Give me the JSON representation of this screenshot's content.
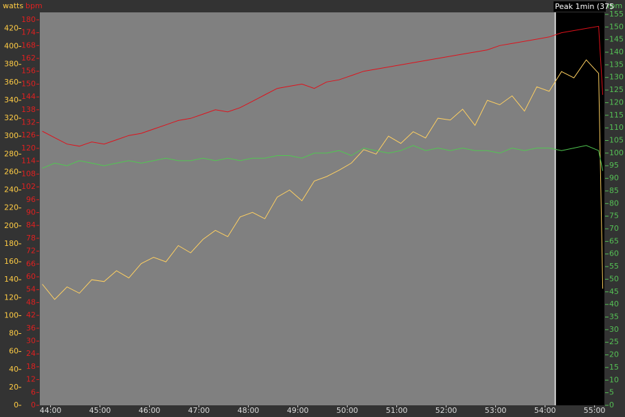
{
  "chart_data": {
    "type": "line",
    "ylabel": "watts",
    "y2label": "bpm",
    "y3label": "rpm",
    "xlim": [
      2627,
      3312
    ],
    "xticks": [
      {
        "value": 2640,
        "label": "44:00"
      },
      {
        "value": 2700,
        "label": "45:00"
      },
      {
        "value": 2760,
        "label": "46:00"
      },
      {
        "value": 2820,
        "label": "47:00"
      },
      {
        "value": 2880,
        "label": "48:00"
      },
      {
        "value": 2940,
        "label": "49:00"
      },
      {
        "value": 3000,
        "label": "50:00"
      },
      {
        "value": 3060,
        "label": "51:00"
      },
      {
        "value": 3120,
        "label": "52:00"
      },
      {
        "value": 3180,
        "label": "53:00"
      },
      {
        "value": 3240,
        "label": "54:00"
      },
      {
        "value": 3300,
        "label": "55:00"
      }
    ],
    "ylim": [
      0,
      438
    ],
    "yticks": [
      0,
      20,
      40,
      60,
      80,
      100,
      120,
      140,
      160,
      180,
      200,
      220,
      240,
      260,
      280,
      300,
      320,
      340,
      360,
      380,
      400,
      420
    ],
    "y2lim": [
      0,
      183.5
    ],
    "y2ticks": [
      0,
      6,
      12,
      18,
      24,
      30,
      36,
      42,
      48,
      54,
      60,
      66,
      72,
      78,
      84,
      90,
      96,
      102,
      108,
      114,
      120,
      126,
      132,
      138,
      144,
      150,
      156,
      162,
      168,
      174,
      180
    ],
    "y3lim": [
      0,
      155.8
    ],
    "y3ticks": [
      0,
      5,
      10,
      15,
      20,
      25,
      30,
      35,
      40,
      45,
      50,
      55,
      60,
      65,
      70,
      75,
      80,
      85,
      90,
      95,
      100,
      105,
      110,
      115,
      120,
      125,
      130,
      135,
      140,
      145,
      150,
      155
    ],
    "highlight": {
      "label": "Peak 1min (375",
      "x": [
        3252,
        3312
      ],
      "color": "#000000"
    },
    "x": [
      2630,
      2645,
      2660,
      2675,
      2690,
      2705,
      2720,
      2735,
      2750,
      2765,
      2780,
      2795,
      2810,
      2825,
      2840,
      2855,
      2870,
      2885,
      2900,
      2915,
      2930,
      2945,
      2960,
      2975,
      2990,
      3005,
      3020,
      3035,
      3050,
      3065,
      3080,
      3095,
      3110,
      3125,
      3140,
      3155,
      3170,
      3185,
      3200,
      3215,
      3230,
      3245,
      3260,
      3275,
      3290,
      3305,
      3310
    ],
    "series": [
      {
        "name": "watts",
        "axis": "y",
        "color": "#ffd060",
        "values": [
          135,
          118,
          132,
          125,
          140,
          138,
          150,
          142,
          158,
          165,
          160,
          178,
          170,
          185,
          195,
          188,
          210,
          215,
          208,
          232,
          240,
          228,
          250,
          255,
          262,
          270,
          285,
          280,
          300,
          292,
          305,
          298,
          320,
          318,
          330,
          312,
          340,
          335,
          345,
          328,
          355,
          350,
          372,
          365,
          385,
          370,
          130
        ]
      },
      {
        "name": "bpm",
        "axis": "y2",
        "color": "#e0101a",
        "values": [
          128,
          125,
          122,
          121,
          123,
          122,
          124,
          126,
          127,
          129,
          131,
          133,
          134,
          136,
          138,
          137,
          139,
          142,
          145,
          148,
          149,
          150,
          148,
          151,
          152,
          154,
          156,
          157,
          158,
          159,
          160,
          161,
          162,
          163,
          164,
          165,
          166,
          168,
          169,
          170,
          171,
          172,
          174,
          175,
          176,
          177,
          145
        ]
      },
      {
        "name": "rpm",
        "axis": "y3",
        "color": "#50c850",
        "values": [
          94,
          96,
          95,
          97,
          96,
          95,
          96,
          97,
          96,
          97,
          98,
          97,
          97,
          98,
          97,
          98,
          97,
          98,
          98,
          99,
          99,
          98,
          100,
          100,
          101,
          99,
          102,
          101,
          100,
          101,
          103,
          101,
          102,
          101,
          102,
          101,
          101,
          100,
          102,
          101,
          102,
          102,
          101,
          102,
          103,
          101,
          93
        ]
      }
    ]
  }
}
